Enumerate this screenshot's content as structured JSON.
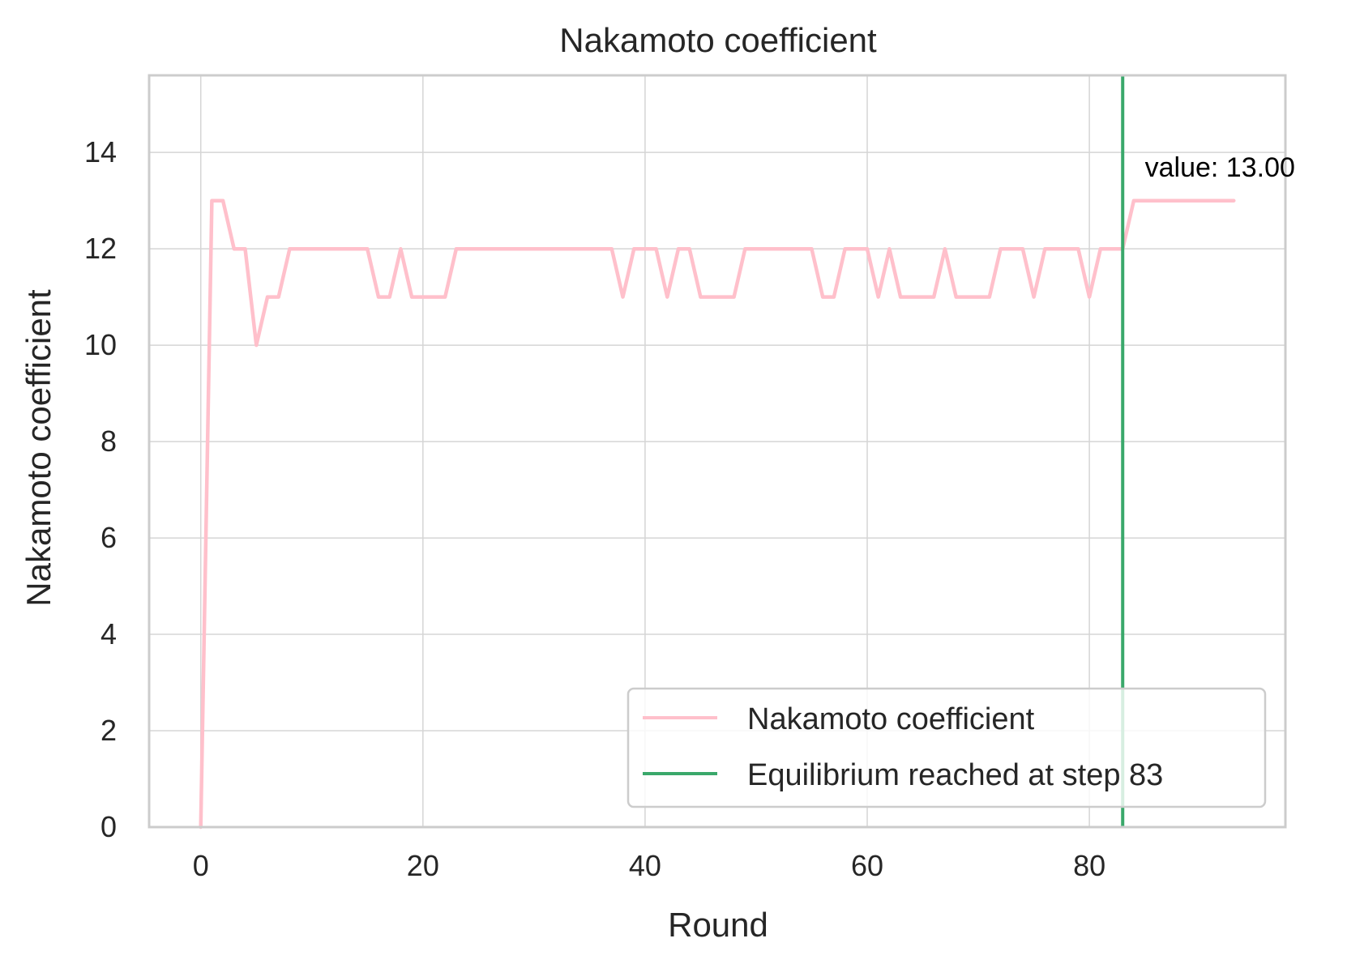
{
  "chart_data": {
    "type": "line",
    "title": "Nakamoto coefficient",
    "xlabel": "Round",
    "ylabel": "Nakamoto coefficient",
    "xlim": [
      -4.65,
      97.65
    ],
    "ylim": [
      0,
      15.6
    ],
    "xticks": [
      0,
      20,
      40,
      60,
      80
    ],
    "yticks": [
      0,
      2,
      4,
      6,
      8,
      10,
      12,
      14
    ],
    "grid": true,
    "legend_position": "lower-right",
    "series": [
      {
        "name": "Nakamoto coefficient",
        "color": "#ffc0cb",
        "x": [
          0,
          1,
          2,
          3,
          4,
          5,
          6,
          7,
          8,
          9,
          10,
          11,
          12,
          13,
          14,
          15,
          16,
          17,
          18,
          19,
          20,
          21,
          22,
          23,
          24,
          25,
          26,
          27,
          28,
          29,
          30,
          31,
          32,
          33,
          34,
          35,
          36,
          37,
          38,
          39,
          40,
          41,
          42,
          43,
          44,
          45,
          46,
          47,
          48,
          49,
          50,
          51,
          52,
          53,
          54,
          55,
          56,
          57,
          58,
          59,
          60,
          61,
          62,
          63,
          64,
          65,
          66,
          67,
          68,
          69,
          70,
          71,
          72,
          73,
          74,
          75,
          76,
          77,
          78,
          79,
          80,
          81,
          82,
          83,
          84,
          85,
          86,
          87,
          88,
          89,
          90,
          91,
          92,
          93
        ],
        "values": [
          0,
          13,
          13,
          12,
          12,
          10,
          11,
          11,
          12,
          12,
          12,
          12,
          12,
          12,
          12,
          12,
          11,
          11,
          12,
          11,
          11,
          11,
          11,
          12,
          12,
          12,
          12,
          12,
          12,
          12,
          12,
          12,
          12,
          12,
          12,
          12,
          12,
          12,
          11,
          12,
          12,
          12,
          11,
          12,
          12,
          11,
          11,
          11,
          11,
          12,
          12,
          12,
          12,
          12,
          12,
          12,
          11,
          11,
          12,
          12,
          12,
          11,
          12,
          11,
          11,
          11,
          11,
          12,
          11,
          11,
          11,
          11,
          12,
          12,
          12,
          11,
          12,
          12,
          12,
          12,
          11,
          12,
          12,
          12,
          13,
          13,
          13,
          13,
          13,
          13,
          13,
          13,
          13,
          13
        ]
      }
    ],
    "vline": {
      "name": "Equilibrium reached at step 83",
      "x": 83,
      "color": "#3aa86b"
    },
    "annotation": {
      "text": "value: 13.00",
      "x": 85,
      "y": 13.5
    }
  }
}
